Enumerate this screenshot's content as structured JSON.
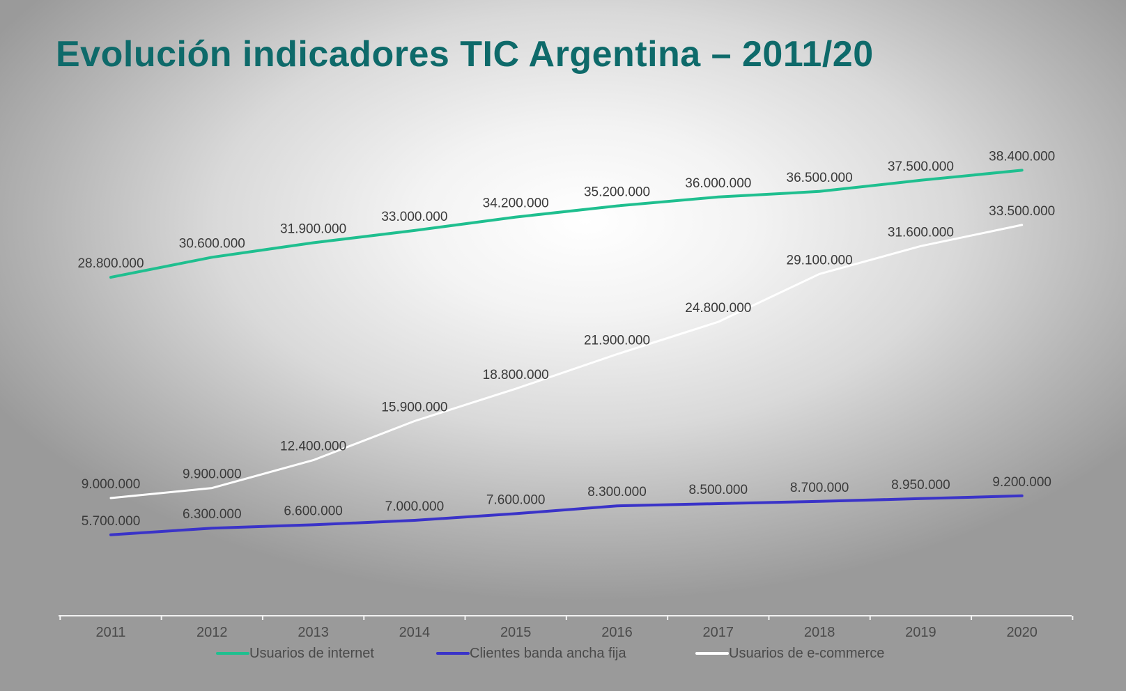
{
  "title": "Evolución indicadores TIC Argentina – 2011/20",
  "chart_data": {
    "type": "line",
    "title": "Evolución indicadores TIC Argentina – 2011/20",
    "xlabel": "",
    "ylabel": "",
    "categories": [
      "2011",
      "2012",
      "2013",
      "2014",
      "2015",
      "2016",
      "2017",
      "2018",
      "2019",
      "2020"
    ],
    "ylim": [
      0,
      40000000
    ],
    "grid": false,
    "legend_position": "bottom",
    "series": [
      {
        "name": "Usuarios de internet",
        "color": "#1fbf8f",
        "values": [
          28800000,
          30600000,
          31900000,
          33000000,
          34200000,
          35200000,
          36000000,
          36500000,
          37500000,
          38400000
        ],
        "labels": [
          "28.800.000",
          "30.600.000",
          "31.900.000",
          "33.000.000",
          "34.200.000",
          "35.200.000",
          "36.000.000",
          "36.500.000",
          "37.500.000",
          "38.400.000"
        ]
      },
      {
        "name": "Clientes banda ancha fija",
        "color": "#3a33c8",
        "values": [
          5700000,
          6300000,
          6600000,
          7000000,
          7600000,
          8300000,
          8500000,
          8700000,
          8950000,
          9200000
        ],
        "labels": [
          "5.700.000",
          "6.300.000",
          "6.600.000",
          "7.000.000",
          "7.600.000",
          "8.300.000",
          "8.500.000",
          "8.700.000",
          "8.950.000",
          "9.200.000"
        ]
      },
      {
        "name": "Usuarios de e-commerce",
        "color": "#ffffff",
        "values": [
          9000000,
          9900000,
          12400000,
          15900000,
          18800000,
          21900000,
          24800000,
          29100000,
          31600000,
          33500000
        ],
        "labels": [
          "9.000.000",
          "9.900.000",
          "12.400.000",
          "15.900.000",
          "18.800.000",
          "21.900.000",
          "24.800.000",
          "29.100.000",
          "31.600.000",
          "33.500.000"
        ]
      }
    ]
  }
}
